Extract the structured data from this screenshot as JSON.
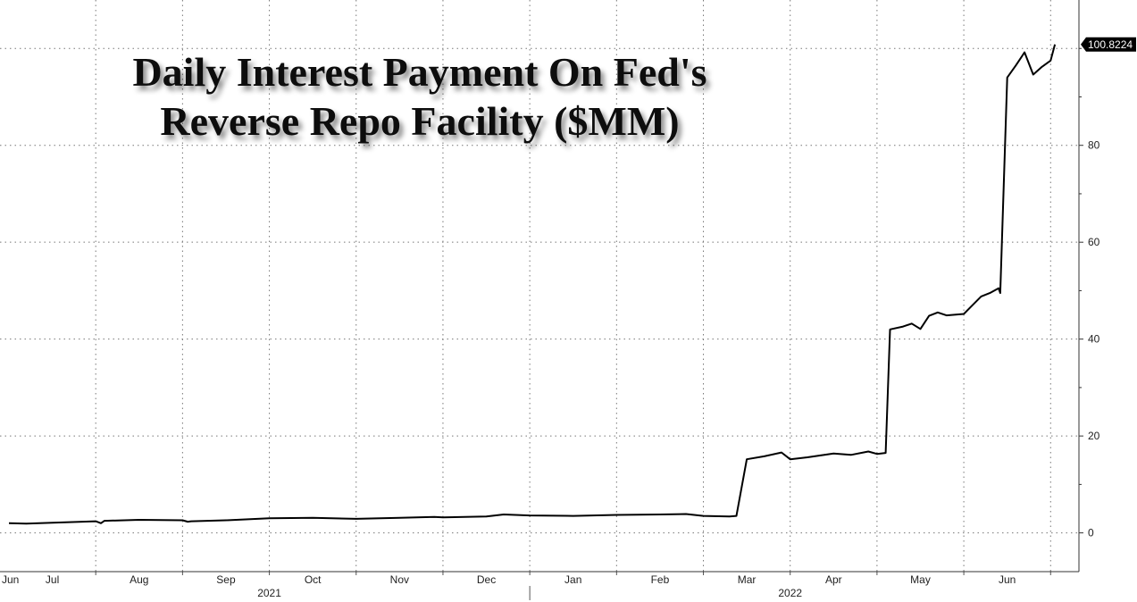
{
  "chart_data": {
    "type": "line",
    "title_lines": [
      "Daily Interest Payment On Fed's",
      "Reverse Repo Facility ($MM)"
    ],
    "ylim": [
      -8,
      110
    ],
    "yticks": [
      0,
      20,
      40,
      60,
      80
    ],
    "x_tick_labels": [
      "Jun",
      "Jul",
      "Aug",
      "Sep",
      "Oct",
      "Nov",
      "Dec",
      "Jan",
      "Feb",
      "Mar",
      "Apr",
      "May",
      "Jun"
    ],
    "x_tick_positions": [
      0.0,
      0.5,
      1.5,
      2.5,
      3.5,
      4.5,
      5.5,
      6.5,
      7.5,
      8.5,
      9.5,
      10.5,
      11.5
    ],
    "year_labels": [
      {
        "label": "2021",
        "pos": 3.0
      },
      {
        "label": "2022",
        "pos": 9.0
      }
    ],
    "year_divider_pos": 6.0,
    "xlim": [
      0,
      12.1
    ],
    "last_value_label": "100.8224",
    "series": [
      {
        "name": "Daily Interest Payment ($MM)",
        "color": "#000000",
        "x": [
          0.0,
          0.2,
          0.5,
          1.0,
          1.06,
          1.1,
          1.5,
          2.0,
          2.06,
          2.1,
          2.5,
          3.0,
          3.5,
          4.0,
          4.5,
          4.9,
          5.0,
          5.5,
          5.7,
          6.0,
          6.5,
          7.0,
          7.5,
          7.8,
          8.0,
          8.3,
          8.38,
          8.5,
          8.7,
          8.9,
          9.0,
          9.2,
          9.5,
          9.7,
          9.9,
          10.0,
          10.1,
          10.15,
          10.3,
          10.4,
          10.5,
          10.6,
          10.7,
          10.8,
          11.0,
          11.1,
          11.2,
          11.3,
          11.4,
          11.42,
          11.5,
          11.6,
          11.7,
          11.8,
          11.9,
          12.0,
          12.05
        ],
        "y": [
          2.0,
          1.9,
          2.1,
          2.4,
          2.0,
          2.5,
          2.7,
          2.6,
          2.3,
          2.4,
          2.6,
          3.0,
          3.1,
          2.9,
          3.1,
          3.3,
          3.2,
          3.4,
          3.8,
          3.6,
          3.5,
          3.7,
          3.8,
          3.9,
          3.5,
          3.4,
          3.5,
          15.2,
          15.8,
          16.6,
          15.2,
          15.6,
          16.4,
          16.1,
          16.8,
          16.3,
          16.5,
          42.0,
          42.6,
          43.2,
          42.1,
          44.8,
          45.5,
          44.9,
          45.2,
          47.0,
          48.8,
          49.5,
          50.5,
          49.5,
          94.0,
          96.5,
          99.2,
          94.6,
          96.2,
          97.5,
          100.8224
        ]
      }
    ]
  }
}
